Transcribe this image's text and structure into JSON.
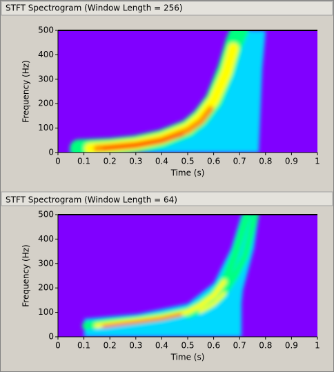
{
  "chart_data": [
    {
      "type": "heatmap",
      "title": "STFT Spectrogram (Window Length = 256)",
      "x_label": "Time (s)",
      "y_label": "Frequency (Hz)",
      "xlim": [
        0,
        1
      ],
      "xticks": [
        0,
        0.1,
        0.2,
        0.3,
        0.4,
        0.5,
        0.6,
        0.7,
        0.8,
        0.9,
        1
      ],
      "ylim": [
        0,
        500
      ],
      "yticks": [
        0,
        100,
        200,
        300,
        400,
        500
      ],
      "background": "#8000ff"
    },
    {
      "type": "heatmap",
      "title": "STFT Spectrogram (Window Length = 64)",
      "x_label": "Time (s)",
      "y_label": "Frequency (Hz)",
      "xlim": [
        0,
        1
      ],
      "xticks": [
        0,
        0.1,
        0.2,
        0.3,
        0.4,
        0.5,
        0.6,
        0.7,
        0.8,
        0.9,
        1
      ],
      "ylim": [
        0,
        500
      ],
      "yticks": [
        0,
        100,
        200,
        300,
        400,
        500
      ],
      "background": "#8000ff"
    }
  ]
}
